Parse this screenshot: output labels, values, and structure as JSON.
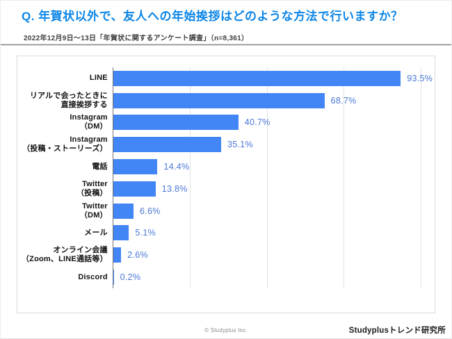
{
  "header": {
    "title": "Q. 年賀状以外で、友人への年始挨拶はどのような方法で行いますか？",
    "subtitle": "2022年12月9日～13日「年賀状に関するアンケート調査」（n=8,361）"
  },
  "chart_data": {
    "type": "bar",
    "orientation": "horizontal",
    "title": "年賀状以外の友人への年始挨拶の方法",
    "categories": [
      "LINE",
      "リアルで会ったときに直接挨拶する",
      "Instagram（DM）",
      "Instagram（投稿・ストーリーズ）",
      "電話",
      "Twitter（投稿）",
      "Twitter（DM）",
      "メール",
      "オンライン会議（Zoom、LINE通話等）",
      "Discord"
    ],
    "category_lines": [
      [
        "LINE"
      ],
      [
        "リアルで会ったときに",
        "直接挨拶する"
      ],
      [
        "Instagram",
        "（DM）"
      ],
      [
        "Instagram",
        "（投稿・ストーリーズ）"
      ],
      [
        "電話"
      ],
      [
        "Twitter",
        "（投稿）"
      ],
      [
        "Twitter",
        "（DM）"
      ],
      [
        "メール"
      ],
      [
        "オンライン会議",
        "（Zoom、LINE通話等）"
      ],
      [
        "Discord"
      ]
    ],
    "values": [
      93.5,
      68.7,
      40.7,
      35.1,
      14.4,
      13.8,
      6.6,
      5.1,
      2.6,
      0.2
    ],
    "value_labels": [
      "93.5%",
      "68.7%",
      "40.7%",
      "35.1%",
      "14.4%",
      "13.8%",
      "6.6%",
      "5.1%",
      "2.6%",
      "0.2%"
    ],
    "xlabel": "",
    "ylabel": "",
    "xlim": [
      0,
      100
    ],
    "gridlines_percent": [
      25,
      50,
      75,
      100
    ],
    "tick_labels_visible": false,
    "legend": "none",
    "grid": true,
    "bar_color": "#4285f4",
    "value_label_color": "#4a77d6"
  },
  "footer": {
    "copyright": "© Studyplus Inc.",
    "brand": "Studyplusトレンド研究所"
  },
  "colors": {
    "title_blue": "#0b85e6",
    "bar_blue": "#4285f4",
    "value_blue": "#4a77d6",
    "axis_gray": "#757575",
    "gridline_gray": "#e2e2e2"
  }
}
